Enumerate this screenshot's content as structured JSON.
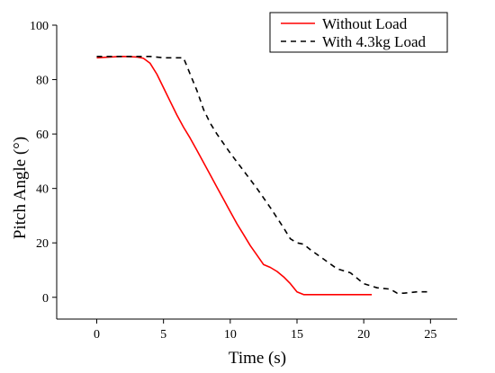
{
  "chart_data": {
    "type": "line",
    "title": "",
    "xlabel": "Time (s)",
    "ylabel": "Pitch Angle (°)",
    "xlim": [
      -3,
      27
    ],
    "ylim": [
      -8,
      100
    ],
    "xticks": [
      0,
      5,
      10,
      15,
      20,
      25
    ],
    "yticks": [
      0,
      20,
      40,
      60,
      80,
      100
    ],
    "grid": false,
    "legend_position": "top-right",
    "series": [
      {
        "name": "Without Load",
        "color": "#ff0000",
        "style": "solid",
        "x": [
          0,
          1,
          2,
          3,
          3.5,
          4,
          4.5,
          5,
          5.5,
          6,
          6.5,
          7,
          7.5,
          8,
          8.5,
          9,
          9.5,
          10,
          10.5,
          11,
          11.5,
          12,
          12.5,
          13,
          13.5,
          14,
          14.5,
          15,
          15.5,
          16,
          16.5,
          17,
          18,
          19,
          20,
          20.6
        ],
        "y": [
          88,
          88.3,
          88.5,
          88.3,
          87.8,
          86,
          82,
          77,
          72,
          67,
          62.5,
          58.5,
          54,
          49.5,
          45,
          40.5,
          36,
          31.5,
          27,
          23,
          19,
          15.5,
          12,
          11,
          9.5,
          7.5,
          5,
          2,
          1,
          1,
          1,
          1,
          1,
          1,
          1,
          1
        ]
      },
      {
        "name": "With 4.3kg Load",
        "color": "#000000",
        "style": "dashed",
        "x": [
          0,
          2,
          4,
          5,
          5.5,
          6,
          6.5,
          7,
          7.5,
          8,
          8.5,
          9,
          10,
          11,
          12,
          13,
          14,
          14.5,
          15,
          15.5,
          16,
          17,
          18,
          19,
          20,
          21,
          22,
          22.5,
          23,
          24,
          25
        ],
        "y": [
          88.5,
          88.5,
          88.5,
          88,
          88,
          88,
          88,
          82,
          76,
          69,
          64,
          60,
          53,
          46.5,
          40,
          33,
          25.5,
          21.5,
          20,
          19.5,
          17.5,
          14,
          10.5,
          9,
          5,
          3.5,
          3,
          1.5,
          1.5,
          2,
          2
        ]
      }
    ]
  }
}
